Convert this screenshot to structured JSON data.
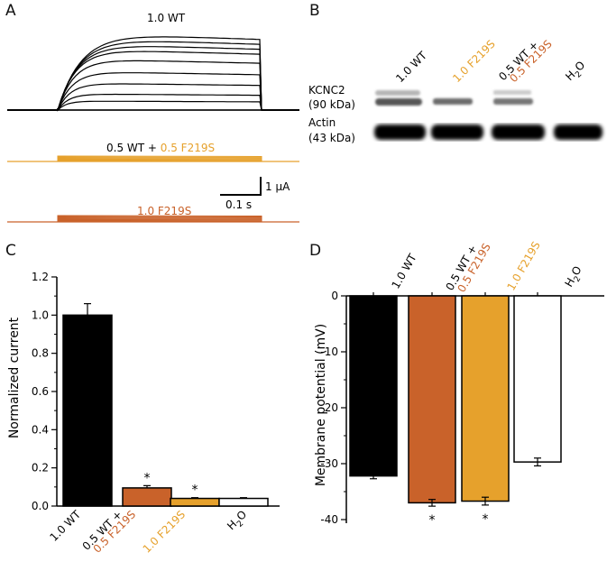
{
  "panels": {
    "a": "A",
    "b": "B",
    "c": "C",
    "d": "D"
  },
  "colors": {
    "wt": "#000000",
    "mixed": "#c9622a",
    "f219s": "#e6a12c",
    "h2o": "#ffffff"
  },
  "panel_a": {
    "label_wt": "1.0 WT",
    "label_mixed_prefix": "0.5 WT + ",
    "label_mixed_suffix": "0.5 F219S",
    "label_f219s": "1.0 F219S",
    "scale_current": "1 μA",
    "scale_time": "0.1 s"
  },
  "panel_b": {
    "lanes": [
      "1.0 WT",
      "1.0 F219S",
      "0.5 WT +",
      "0.5 F219S",
      "H",
      "2",
      "O"
    ],
    "kcnc2": "KCNC2",
    "kcnc2_kda": "(90 kDa)",
    "actin": "Actin",
    "actin_kda": "(43 kDa)"
  },
  "chart_data": [
    {
      "type": "bar",
      "categories": [
        "1.0 WT",
        "0.5 WT + 0.5 F219S",
        "1.0 F219S",
        "H2O"
      ],
      "values": [
        1.0,
        0.095,
        0.04,
        0.04
      ],
      "errors": [
        0.06,
        0.012,
        0.004,
        0.004
      ],
      "significance": [
        "",
        "*",
        "*",
        ""
      ],
      "ylabel": "Normalized current",
      "ylim": [
        0,
        1.2
      ],
      "yticks": [
        "0.0",
        "0.2",
        "0.4",
        "0.6",
        "0.8",
        "1.0",
        "1.2"
      ]
    },
    {
      "type": "bar",
      "categories": [
        "1.0 WT",
        "0.5 WT + 0.5 F219S",
        "1.0 F219S",
        "H2O"
      ],
      "values": [
        -32.2,
        -37.0,
        -36.7,
        -29.7
      ],
      "errors": [
        0.5,
        0.6,
        0.7,
        0.7
      ],
      "significance": [
        "",
        "*",
        "*",
        ""
      ],
      "ylabel": "Membrane potential (mV)",
      "ylim": [
        -40,
        0
      ],
      "yticks": [
        "0",
        "-10",
        "-20",
        "-30",
        "-40"
      ]
    }
  ]
}
